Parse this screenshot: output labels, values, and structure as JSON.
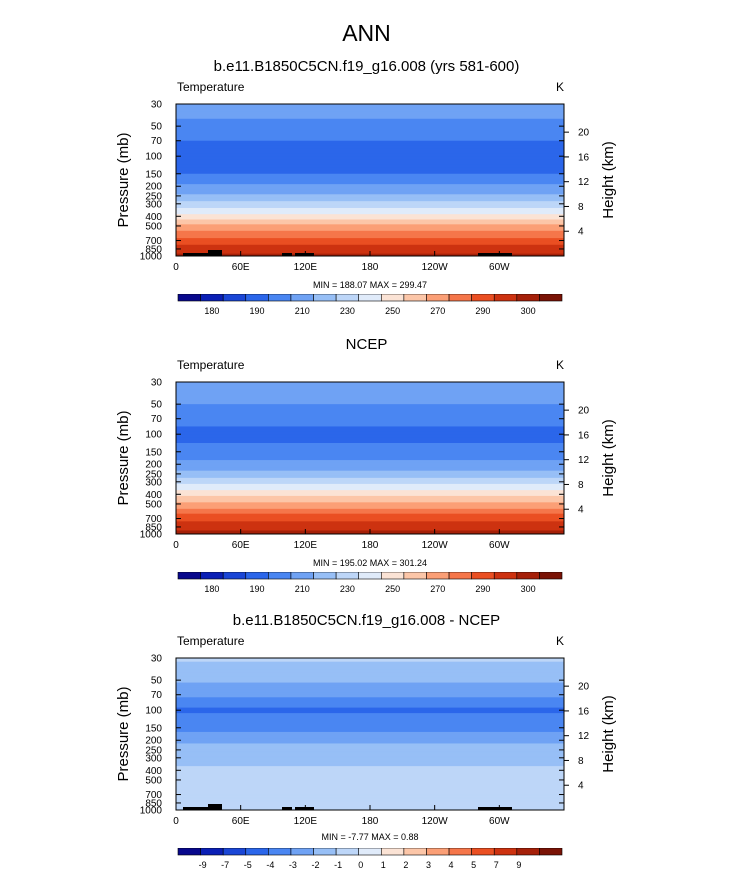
{
  "main_title": "ANN",
  "chart_data": [
    {
      "type": "heatmap",
      "title": "b.e11.B1850C5CN.f19_g16.008 (yrs 581-600)",
      "variable_label": "Temperature",
      "units": "K",
      "ylabel": "Pressure (mb)",
      "y2label": "Height (km)",
      "x_ticks": [
        "0",
        "60E",
        "120E",
        "180",
        "120W",
        "60W"
      ],
      "y_ticks": [
        "30",
        "50",
        "70",
        "100",
        "150",
        "200",
        "250",
        "300",
        "400",
        "500",
        "700",
        "850",
        "1000"
      ],
      "y2_ticks": [
        "20",
        "16",
        "12",
        "8",
        "4"
      ],
      "min_max_text": "MIN = 188.07  MAX = 299.47",
      "min": 188.07,
      "max": 299.47,
      "colorbar": {
        "labels": [
          "180",
          "190",
          "210",
          "230",
          "250",
          "270",
          "290",
          "300"
        ],
        "colors": [
          "#08088c",
          "#0a1fb5",
          "#1a46d6",
          "#2b66ea",
          "#4a86f2",
          "#6fa2f4",
          "#97bff6",
          "#bdd6f8",
          "#e0ebfa",
          "#fbe3d5",
          "#fcc6a8",
          "#fb9f76",
          "#f5764a",
          "#ea4f22",
          "#cd3210",
          "#a52009",
          "#7a1306"
        ]
      },
      "levels_pressure_mb": [
        30,
        50,
        70,
        100,
        150,
        200,
        250,
        300,
        400,
        500,
        700,
        850,
        1000
      ],
      "level_values_K": [
        215,
        212,
        206,
        200,
        206,
        214,
        223,
        231,
        248,
        261,
        278,
        286,
        291
      ]
    },
    {
      "type": "heatmap",
      "title": "NCEP",
      "variable_label": "Temperature",
      "units": "K",
      "ylabel": "Pressure (mb)",
      "y2label": "Height (km)",
      "x_ticks": [
        "0",
        "60E",
        "120E",
        "180",
        "120W",
        "60W"
      ],
      "y_ticks": [
        "30",
        "50",
        "70",
        "100",
        "150",
        "200",
        "250",
        "300",
        "400",
        "500",
        "700",
        "850",
        "1000"
      ],
      "y2_ticks": [
        "20",
        "16",
        "12",
        "8",
        "4"
      ],
      "min_max_text": "MIN = 195.02  MAX = 301.24",
      "min": 195.02,
      "max": 301.24,
      "colorbar": {
        "labels": [
          "180",
          "190",
          "210",
          "230",
          "250",
          "270",
          "290",
          "300"
        ],
        "colors": [
          "#08088c",
          "#0a1fb5",
          "#1a46d6",
          "#2b66ea",
          "#4a86f2",
          "#6fa2f4",
          "#97bff6",
          "#bdd6f8",
          "#e0ebfa",
          "#fbe3d5",
          "#fcc6a8",
          "#fb9f76",
          "#f5764a",
          "#ea4f22",
          "#cd3210",
          "#a52009",
          "#7a1306"
        ]
      },
      "levels_pressure_mb": [
        30,
        50,
        70,
        100,
        150,
        200,
        250,
        300,
        400,
        500,
        700,
        850,
        1000
      ],
      "level_values_K": [
        218,
        213,
        208,
        203,
        208,
        216,
        224,
        232,
        250,
        262,
        279,
        287,
        293
      ]
    },
    {
      "type": "heatmap",
      "title": "b.e11.B1850C5CN.f19_g16.008 - NCEP",
      "variable_label": "Temperature",
      "units": "K",
      "ylabel": "Pressure (mb)",
      "y2label": "Height (km)",
      "x_ticks": [
        "0",
        "60E",
        "120E",
        "180",
        "120W",
        "60W"
      ],
      "y_ticks": [
        "30",
        "50",
        "70",
        "100",
        "150",
        "200",
        "250",
        "300",
        "400",
        "500",
        "700",
        "850",
        "1000"
      ],
      "y2_ticks": [
        "20",
        "16",
        "12",
        "8",
        "4"
      ],
      "min_max_text": "MIN =  -7.77  MAX =   0.88",
      "min": -7.77,
      "max": 0.88,
      "colorbar": {
        "labels": [
          "-9",
          "-7",
          "-5",
          "-4",
          "-3",
          "-2",
          "-1",
          "0",
          "1",
          "2",
          "3",
          "4",
          "5",
          "7",
          "9"
        ],
        "colors": [
          "#08088c",
          "#0a1fb5",
          "#1a46d6",
          "#2b66ea",
          "#4a86f2",
          "#6fa2f4",
          "#97bff6",
          "#bdd6f8",
          "#e0ebfa",
          "#fbe3d5",
          "#fcc6a8",
          "#fb9f76",
          "#f5764a",
          "#ea4f22",
          "#cd3210",
          "#a52009",
          "#7a1306"
        ]
      },
      "levels_pressure_mb": [
        30,
        50,
        70,
        100,
        150,
        200,
        250,
        300,
        400,
        500,
        700,
        850,
        1000
      ],
      "level_values_K": [
        -1.5,
        -2.5,
        -3.5,
        -5.0,
        -4.0,
        -3.0,
        -2.0,
        -1.8,
        -1.5,
        -1.2,
        -0.8,
        -1.0,
        -1.5
      ]
    }
  ]
}
